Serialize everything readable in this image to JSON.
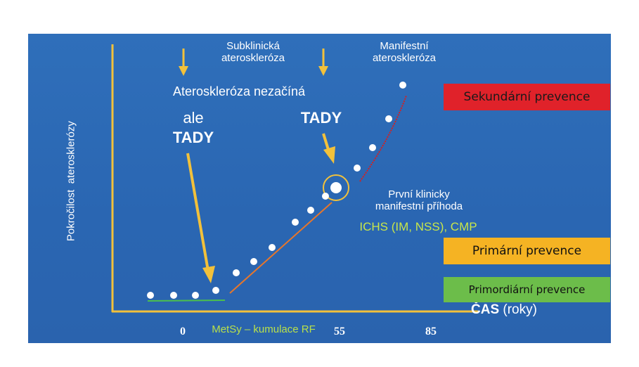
{
  "labels": {
    "subclinical": "Subklinická\nateroskleróza",
    "manifest": "Manifestní\nateroskleróza",
    "not_start": "Ateroskleróza nezačíná",
    "ale": "ale",
    "tady": "TADY",
    "tady2": "TADY",
    "first_event": "První klinicky\nmanifestní příhoda",
    "ichs": "ICHS (IM, NSS), CMP",
    "y_axis": "Pokročilost  aterosklerózy",
    "x_axis_bold": "ČAS",
    "x_axis_unit": " (roky)",
    "metsy": "MetSy – kumulace RF",
    "tick_0": "0",
    "tick_55": "55",
    "tick_85": "85"
  },
  "boxes": {
    "secondary": "Sekundární prevence",
    "primary": "Primární prevence",
    "primordial": "Primordiární prevence"
  },
  "colors": {
    "background": "#2b68b3",
    "axis": "#f2c13b",
    "arrow": "#f2c13b",
    "secondary_box": "#e0222a",
    "primary_box": "#f5b323",
    "primordial_box": "#6cbd4a",
    "ichs_text": "#c8e64a",
    "metsy_text": "#b8e04a",
    "green_line": "#4cc04c",
    "orange_line": "#e8762a",
    "red_line": "#d62020"
  }
}
